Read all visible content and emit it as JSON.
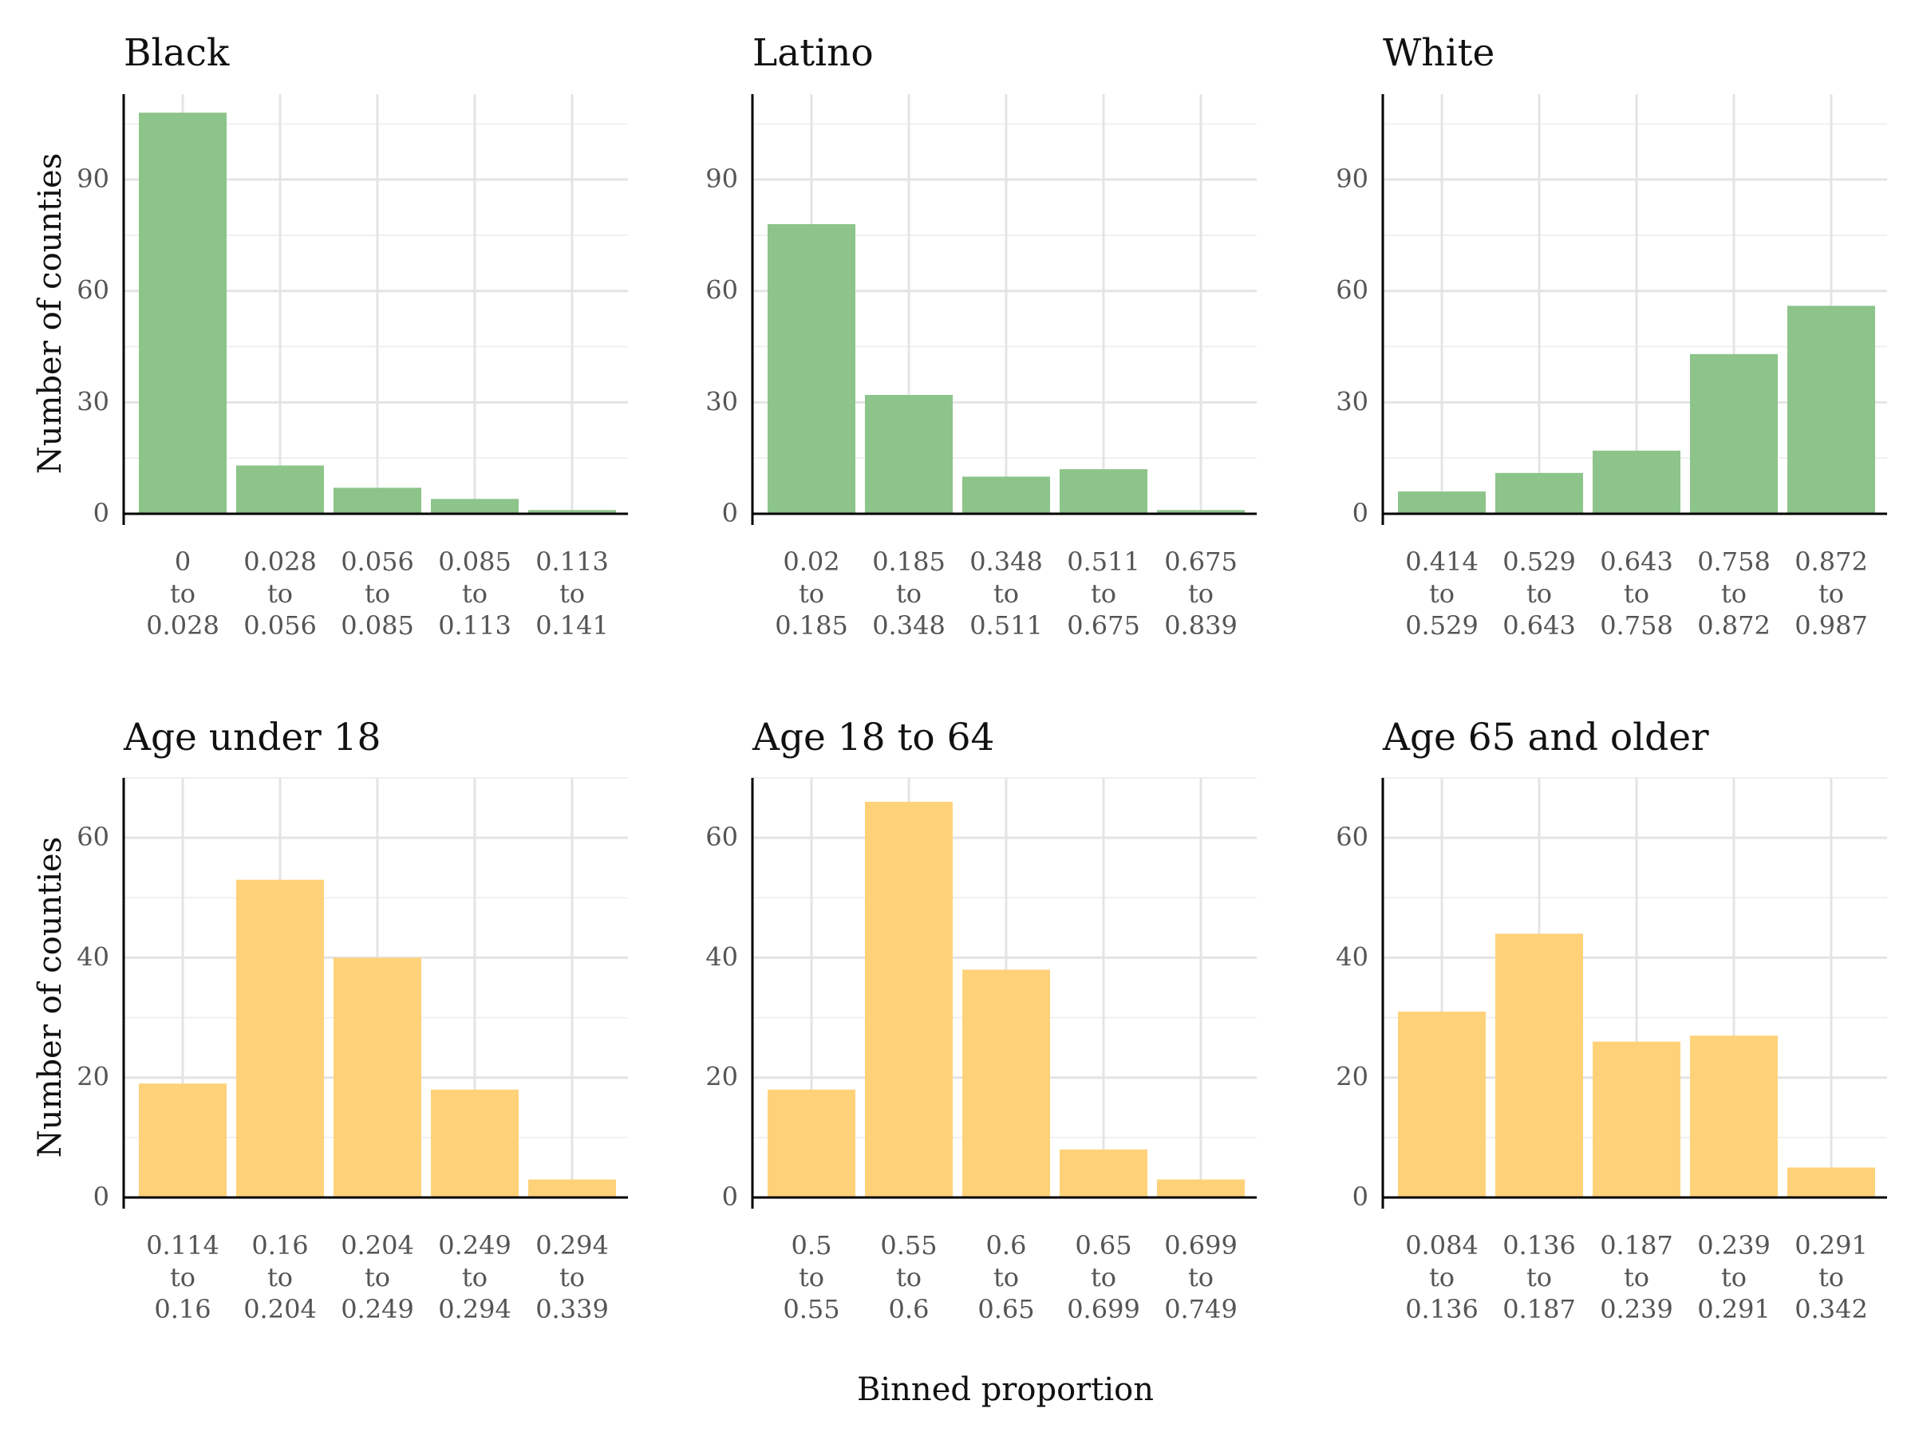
{
  "figure": {
    "ylabel": "Number of counties",
    "xlabel": "Binned proportion"
  },
  "colors": {
    "race_bar": "#8cc48a",
    "age_bar": "#ffd27a"
  },
  "chart_data": [
    {
      "type": "bar",
      "title": "Black",
      "color_key": "race_bar",
      "categories": [
        "0 to 0.028",
        "0.028 to 0.056",
        "0.056 to 0.085",
        "0.085 to 0.113",
        "0.113 to 0.141"
      ],
      "tick_lines": [
        [
          "0",
          "to",
          "0.028"
        ],
        [
          "0.028",
          "to",
          "0.056"
        ],
        [
          "0.056",
          "to",
          "0.085"
        ],
        [
          "0.085",
          "to",
          "0.113"
        ],
        [
          "0.113",
          "to",
          "0.141"
        ]
      ],
      "values": [
        108,
        13,
        7,
        4,
        1
      ],
      "ylim": [
        0,
        113
      ],
      "yticks": [
        0,
        30,
        60,
        90
      ],
      "ylabel": "Number of counties",
      "grid": true
    },
    {
      "type": "bar",
      "title": "Latino",
      "color_key": "race_bar",
      "categories": [
        "0.02 to 0.185",
        "0.185 to 0.348",
        "0.348 to 0.511",
        "0.511 to 0.675",
        "0.675 to 0.839"
      ],
      "tick_lines": [
        [
          "0.02",
          "to",
          "0.185"
        ],
        [
          "0.185",
          "to",
          "0.348"
        ],
        [
          "0.348",
          "to",
          "0.511"
        ],
        [
          "0.511",
          "to",
          "0.675"
        ],
        [
          "0.675",
          "to",
          "0.839"
        ]
      ],
      "values": [
        78,
        32,
        10,
        12,
        1
      ],
      "ylim": [
        0,
        113
      ],
      "yticks": [
        0,
        30,
        60,
        90
      ],
      "grid": true
    },
    {
      "type": "bar",
      "title": "White",
      "color_key": "race_bar",
      "categories": [
        "0.414 to 0.529",
        "0.529 to 0.643",
        "0.643 to 0.758",
        "0.758 to 0.872",
        "0.872 to 0.987"
      ],
      "tick_lines": [
        [
          "0.414",
          "to",
          "0.529"
        ],
        [
          "0.529",
          "to",
          "0.643"
        ],
        [
          "0.643",
          "to",
          "0.758"
        ],
        [
          "0.758",
          "to",
          "0.872"
        ],
        [
          "0.872",
          "to",
          "0.987"
        ]
      ],
      "values": [
        6,
        11,
        17,
        43,
        56
      ],
      "ylim": [
        0,
        113
      ],
      "yticks": [
        0,
        30,
        60,
        90
      ],
      "grid": true
    },
    {
      "type": "bar",
      "title": "Age under 18",
      "color_key": "age_bar",
      "categories": [
        "0.114 to 0.16",
        "0.16 to 0.204",
        "0.204 to 0.249",
        "0.249 to 0.294",
        "0.294 to 0.339"
      ],
      "tick_lines": [
        [
          "0.114",
          "to",
          "0.16"
        ],
        [
          "0.16",
          "to",
          "0.204"
        ],
        [
          "0.204",
          "to",
          "0.249"
        ],
        [
          "0.249",
          "to",
          "0.294"
        ],
        [
          "0.294",
          "to",
          "0.339"
        ]
      ],
      "values": [
        19,
        53,
        40,
        18,
        3
      ],
      "ylim": [
        0,
        70
      ],
      "yticks": [
        0,
        20,
        40,
        60
      ],
      "ylabel": "Number of counties",
      "grid": true
    },
    {
      "type": "bar",
      "title": "Age 18 to 64",
      "color_key": "age_bar",
      "categories": [
        "0.5 to 0.55",
        "0.55 to 0.6",
        "0.6 to 0.65",
        "0.65 to 0.699",
        "0.699 to 0.749"
      ],
      "tick_lines": [
        [
          "0.5",
          "to",
          "0.55"
        ],
        [
          "0.55",
          "to",
          "0.6"
        ],
        [
          "0.6",
          "to",
          "0.65"
        ],
        [
          "0.65",
          "to",
          "0.699"
        ],
        [
          "0.699",
          "to",
          "0.749"
        ]
      ],
      "values": [
        18,
        66,
        38,
        8,
        3
      ],
      "ylim": [
        0,
        70
      ],
      "yticks": [
        0,
        20,
        40,
        60
      ],
      "xlabel": "Binned proportion",
      "grid": true
    },
    {
      "type": "bar",
      "title": "Age 65 and older",
      "color_key": "age_bar",
      "categories": [
        "0.084 to 0.136",
        "0.136 to 0.187",
        "0.187 to 0.239",
        "0.239 to 0.291",
        "0.291 to 0.342"
      ],
      "tick_lines": [
        [
          "0.084",
          "to",
          "0.136"
        ],
        [
          "0.136",
          "to",
          "0.187"
        ],
        [
          "0.187",
          "to",
          "0.239"
        ],
        [
          "0.239",
          "to",
          "0.291"
        ],
        [
          "0.291",
          "to",
          "0.342"
        ]
      ],
      "values": [
        31,
        44,
        26,
        27,
        5
      ],
      "ylim": [
        0,
        70
      ],
      "yticks": [
        0,
        20,
        40,
        60
      ],
      "grid": true
    }
  ]
}
